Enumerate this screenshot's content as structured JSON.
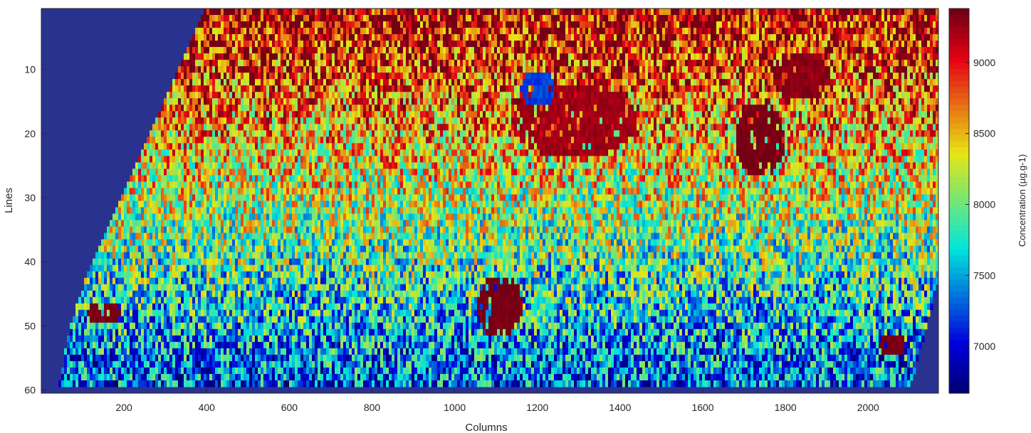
{
  "chart_data": {
    "type": "heatmap",
    "title": "",
    "xlabel": "Columns",
    "ylabel": "Lines",
    "colorbar_label": "Concentration (µg.g-1)",
    "xlim": [
      0,
      2170
    ],
    "ylim": [
      60,
      1
    ],
    "y_reversed": true,
    "xticks": [
      200,
      400,
      600,
      800,
      1000,
      1200,
      1400,
      1600,
      1800,
      2000
    ],
    "yticks": [
      10,
      20,
      30,
      40,
      50,
      60
    ],
    "colorbar_range": [
      6670,
      9380
    ],
    "colorbar_ticks": [
      7000,
      7500,
      8000,
      8500,
      9000
    ],
    "colormap": "jet",
    "background_color": "#2a3290",
    "grid": false,
    "mask_polygon": [
      [
        390,
        1
      ],
      [
        2170,
        1
      ],
      [
        2170,
        43
      ],
      [
        2100,
        60
      ],
      [
        40,
        60
      ],
      [
        70,
        50
      ],
      [
        100,
        44
      ]
    ],
    "hotspots": [
      {
        "x": 1110,
        "y": 47,
        "rx": 55,
        "ry": 5,
        "value": 9380
      },
      {
        "x": 1740,
        "y": 21,
        "rx": 60,
        "ry": 6,
        "value": 9380
      },
      {
        "x": 1290,
        "y": 18,
        "rx": 150,
        "ry": 6,
        "value": 9250
      },
      {
        "x": 1840,
        "y": 11,
        "rx": 70,
        "ry": 4,
        "value": 9300
      },
      {
        "x": 150,
        "y": 48,
        "rx": 40,
        "ry": 2,
        "value": 9380
      },
      {
        "x": 2060,
        "y": 53,
        "rx": 35,
        "ry": 2,
        "value": 9380
      },
      {
        "x": 1200,
        "y": 13,
        "rx": 40,
        "ry": 3,
        "value": 7200
      }
    ]
  }
}
